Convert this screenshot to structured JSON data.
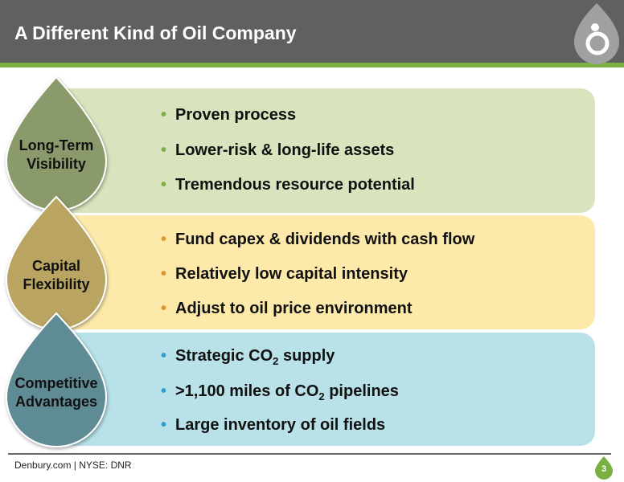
{
  "header": {
    "title": "A Different Kind of Oil Company"
  },
  "sections": [
    {
      "label": [
        "Long-Term",
        "Visibility"
      ],
      "bullets": [
        {
          "text": "Proven process"
        },
        {
          "text": "Lower-risk & long-life assets"
        },
        {
          "text": "Tremendous resource potential"
        }
      ]
    },
    {
      "label": [
        "Capital",
        "Flexibility"
      ],
      "bullets": [
        {
          "text": "Fund capex & dividends with cash flow"
        },
        {
          "text": "Relatively low capital intensity"
        },
        {
          "text": "Adjust to oil price environment"
        }
      ]
    },
    {
      "label": [
        "Competitive",
        "Advantages"
      ],
      "bullets": [
        {
          "text": "Strategic CO",
          "sub": "2",
          "after": " supply"
        },
        {
          "text": ">1,100 miles of CO",
          "sub": "2",
          "after": " pipelines"
        },
        {
          "text": "Large inventory of oil fields"
        }
      ]
    }
  ],
  "footer": {
    "text": "Denbury.com | NYSE: DNR",
    "page": "3"
  }
}
